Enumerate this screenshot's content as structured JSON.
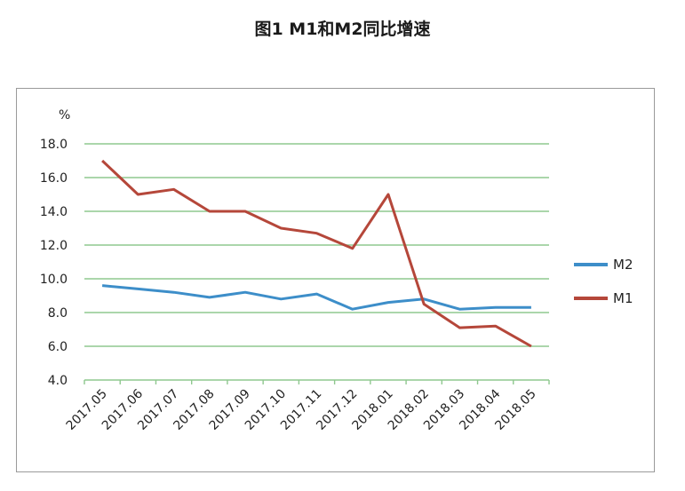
{
  "title": "图1 M1和M2同比增速",
  "chart_data": {
    "type": "line",
    "ylabel": "%",
    "ylim": [
      4.0,
      18.0
    ],
    "y_ticks": [
      "4.0",
      "6.0",
      "8.0",
      "10.0",
      "12.0",
      "14.0",
      "16.0",
      "18.0"
    ],
    "grid": true,
    "legend_position": "right",
    "categories": [
      "2017.05",
      "2017.06",
      "2017.07",
      "2017.08",
      "2017.09",
      "2017.10",
      "2017.11",
      "2017.12",
      "2018.01",
      "2018.02",
      "2018.03",
      "2018.04",
      "2018.05"
    ],
    "series": [
      {
        "name": "M2",
        "color": "#3d8ec9",
        "values": [
          9.6,
          9.4,
          9.2,
          8.9,
          9.2,
          8.8,
          9.1,
          8.2,
          8.6,
          8.8,
          8.2,
          8.3,
          8.3
        ]
      },
      {
        "name": "M1",
        "color": "#b5473a",
        "values": [
          17.0,
          15.0,
          15.3,
          14.0,
          14.0,
          13.0,
          12.7,
          11.8,
          15.0,
          8.5,
          7.1,
          7.2,
          6.0
        ]
      }
    ]
  }
}
